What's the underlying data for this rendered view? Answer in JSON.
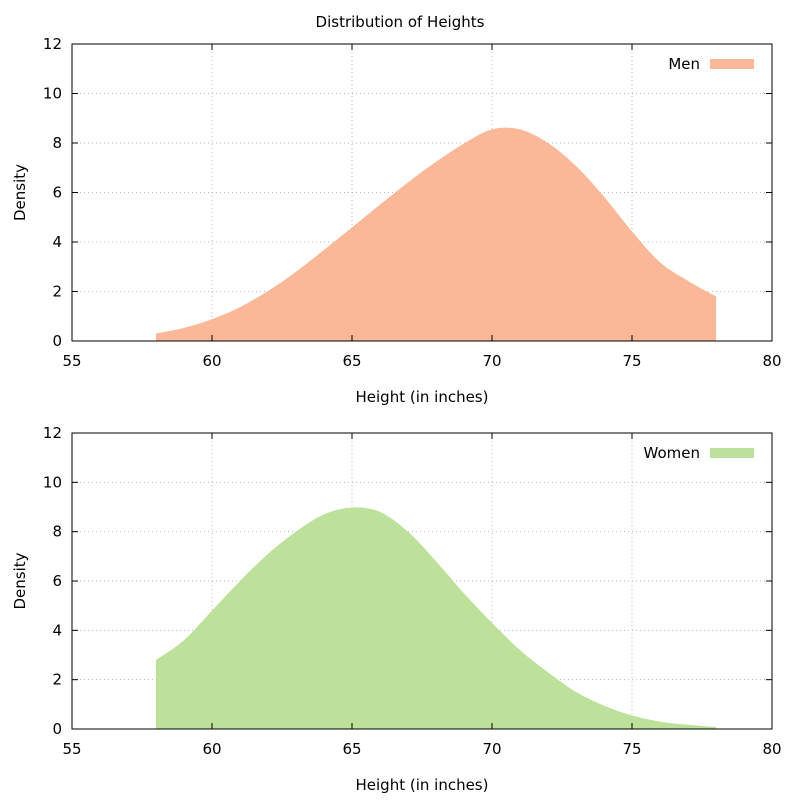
{
  "title": "Distribution of Heights",
  "chart_data": [
    {
      "type": "area",
      "xlabel": "Height (in inches)",
      "ylabel": "Density",
      "xlim": [
        55,
        80
      ],
      "ylim": [
        0,
        12
      ],
      "xticks": [
        55,
        60,
        65,
        70,
        75,
        80
      ],
      "yticks": [
        0,
        2,
        4,
        6,
        8,
        10,
        12
      ],
      "grid": true,
      "legend_position": "top-right",
      "series": [
        {
          "name": "Men",
          "color": "#fbb898",
          "x": [
            58,
            59,
            60,
            61,
            62,
            63,
            64,
            65,
            66,
            67,
            68,
            69,
            70,
            71,
            72,
            73,
            74,
            75,
            76,
            77,
            78
          ],
          "y": [
            0.3,
            0.53,
            0.88,
            1.37,
            2.02,
            2.8,
            3.68,
            4.59,
            5.51,
            6.41,
            7.24,
            7.98,
            8.55,
            8.55,
            8.0,
            7.07,
            5.83,
            4.43,
            3.18,
            2.43,
            1.8
          ]
        }
      ]
    },
    {
      "type": "area",
      "xlabel": "Height (in inches)",
      "ylabel": "Density",
      "xlim": [
        55,
        80
      ],
      "ylim": [
        0,
        12
      ],
      "xticks": [
        55,
        60,
        65,
        70,
        75,
        80
      ],
      "yticks": [
        0,
        2,
        4,
        6,
        8,
        10,
        12
      ],
      "grid": true,
      "legend_position": "top-right",
      "series": [
        {
          "name": "Women",
          "color": "#bde19a",
          "x": [
            58,
            59,
            60,
            61,
            62,
            63,
            64,
            65,
            66,
            67,
            68,
            69,
            70,
            71,
            72,
            73,
            74,
            75,
            76,
            77,
            78
          ],
          "y": [
            2.8,
            3.6,
            4.8,
            6.0,
            7.1,
            8.0,
            8.7,
            8.98,
            8.8,
            8.0,
            6.8,
            5.5,
            4.3,
            3.2,
            2.3,
            1.5,
            0.95,
            0.55,
            0.3,
            0.17,
            0.08
          ]
        }
      ]
    }
  ]
}
